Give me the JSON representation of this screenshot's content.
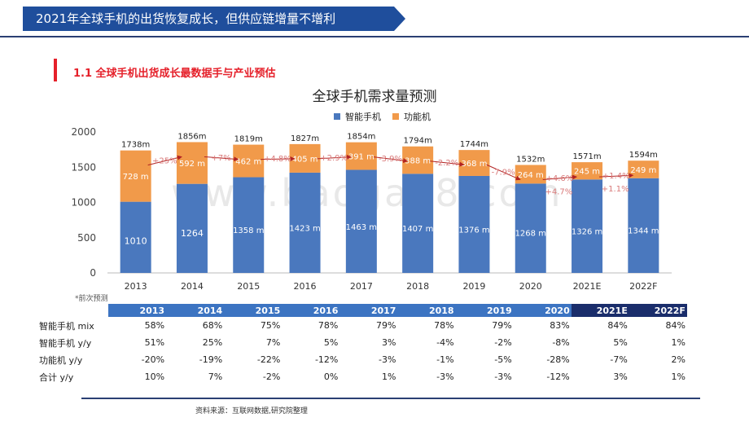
{
  "header": {
    "title": "2021年全球手机的出货恢复成长，但供应链增量不增利"
  },
  "section": {
    "title": "1.1  全球手机出货成长最数据手与产业预估"
  },
  "watermark": "www.baogao8.com",
  "colors": {
    "smart": "#4a78be",
    "feature": "#f19a4a",
    "banner": "#1f4e9c",
    "accent": "#e5202a",
    "arrow": "#b22222"
  },
  "chart_data": {
    "type": "bar",
    "stacked": true,
    "title": "全球手机需求量预测",
    "categories": [
      "2013",
      "2014",
      "2015",
      "2016",
      "2017",
      "2018",
      "2019",
      "2020",
      "2021E",
      "2022F"
    ],
    "series": [
      {
        "name": "智能手机",
        "values": [
          1010,
          1264,
          1358,
          1423,
          1463,
          1407,
          1376,
          1268,
          1326,
          1344
        ],
        "labels": [
          "1010",
          "1264",
          "1358 m",
          "1423 m",
          "1463 m",
          "1407 m",
          "1376 m",
          "1268 m",
          "1326 m",
          "1344 m"
        ]
      },
      {
        "name": "功能机",
        "values": [
          728,
          592,
          462,
          405,
          391,
          388,
          368,
          264,
          245,
          249
        ],
        "labels": [
          "728 m",
          "592 m",
          "462 m",
          "405 m",
          "391 m",
          "388 m",
          "368 m",
          "264 m",
          "245 m",
          "249 m"
        ]
      }
    ],
    "totals": [
      "1738m",
      "1856m",
      "1819m",
      "1827m",
      "1854m",
      "1794m",
      "1744m",
      "1532m",
      "1571m",
      "1594m"
    ],
    "total_growth": [
      "+25%",
      "+7%",
      "+4.8%",
      "+2.9%",
      "-3.9%",
      "-2.2%",
      "-7.9%",
      "+4.6%",
      "+1.4%"
    ],
    "smart_growth": [
      "+4.7%",
      "+1.1%"
    ],
    "ylim": [
      0,
      2000
    ],
    "yticks": [
      0,
      500,
      1000,
      1500,
      2000
    ],
    "xlabel": "",
    "ylabel": "",
    "legend_position": "top-center"
  },
  "note": "*前次预测",
  "table": {
    "years": [
      "2013",
      "2014",
      "2015",
      "2016",
      "2017",
      "2018",
      "2019",
      "2020",
      "2021E",
      "2022F"
    ],
    "rows": [
      {
        "label": "智能手机 mix",
        "values": [
          "58%",
          "68%",
          "75%",
          "78%",
          "79%",
          "78%",
          "79%",
          "83%",
          "84%",
          "84%"
        ]
      },
      {
        "label": "智能手机 y/y",
        "values": [
          "51%",
          "25%",
          "7%",
          "5%",
          "3%",
          "-4%",
          "-2%",
          "-8%",
          "5%",
          "1%"
        ]
      },
      {
        "label": "功能机 y/y",
        "values": [
          "-20%",
          "-19%",
          "-22%",
          "-12%",
          "-3%",
          "-1%",
          "-5%",
          "-28%",
          "-7%",
          "2%"
        ]
      },
      {
        "label": "合计 y/y",
        "values": [
          "10%",
          "7%",
          "-2%",
          "0%",
          "1%",
          "-3%",
          "-3%",
          "-12%",
          "3%",
          "1%"
        ]
      }
    ]
  },
  "source": "资料来源：互联网数据,研究院整理"
}
